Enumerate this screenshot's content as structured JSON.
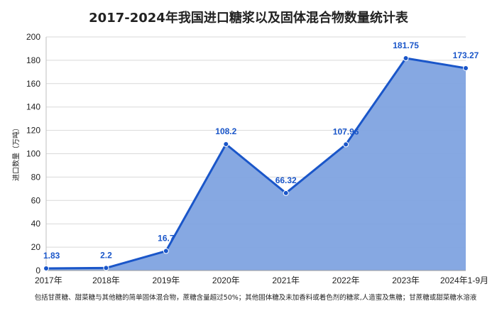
{
  "chart_data": {
    "type": "area",
    "title": "2017-2024年我国进口糖浆以及固体混合物数量统计表",
    "ylabel": "进口数量（万吨）",
    "xlabel": "",
    "note": "包括甘蔗糖、甜菜糖与其他糖的简单固体混合物，蔗糖含量超过50%；其他固体糖及未加香料或着色剂的糖浆,人造蜜及焦糖；甘蔗糖或甜菜糖水溶液",
    "categories": [
      "2017年",
      "2018年",
      "2019年",
      "2020年",
      "2021年",
      "2022年",
      "2023年",
      "2024年1-9月"
    ],
    "values": [
      1.83,
      2.2,
      16.7,
      108.2,
      66.32,
      107.96,
      181.75,
      173.27
    ],
    "data_labels": [
      "1.83",
      "2.2",
      "16.7",
      "108.2",
      "66.32",
      "107.96",
      "181.75",
      "173.27"
    ],
    "ylim": [
      0,
      200
    ],
    "yticks": [
      0,
      20,
      40,
      60,
      80,
      100,
      120,
      140,
      160,
      180,
      200
    ],
    "grid": true,
    "legend": "none",
    "colors": {
      "line": "#1a56c9",
      "fill": "#7fa3e0",
      "label": "#1a56c9",
      "grid": "#d9d9d9"
    }
  }
}
